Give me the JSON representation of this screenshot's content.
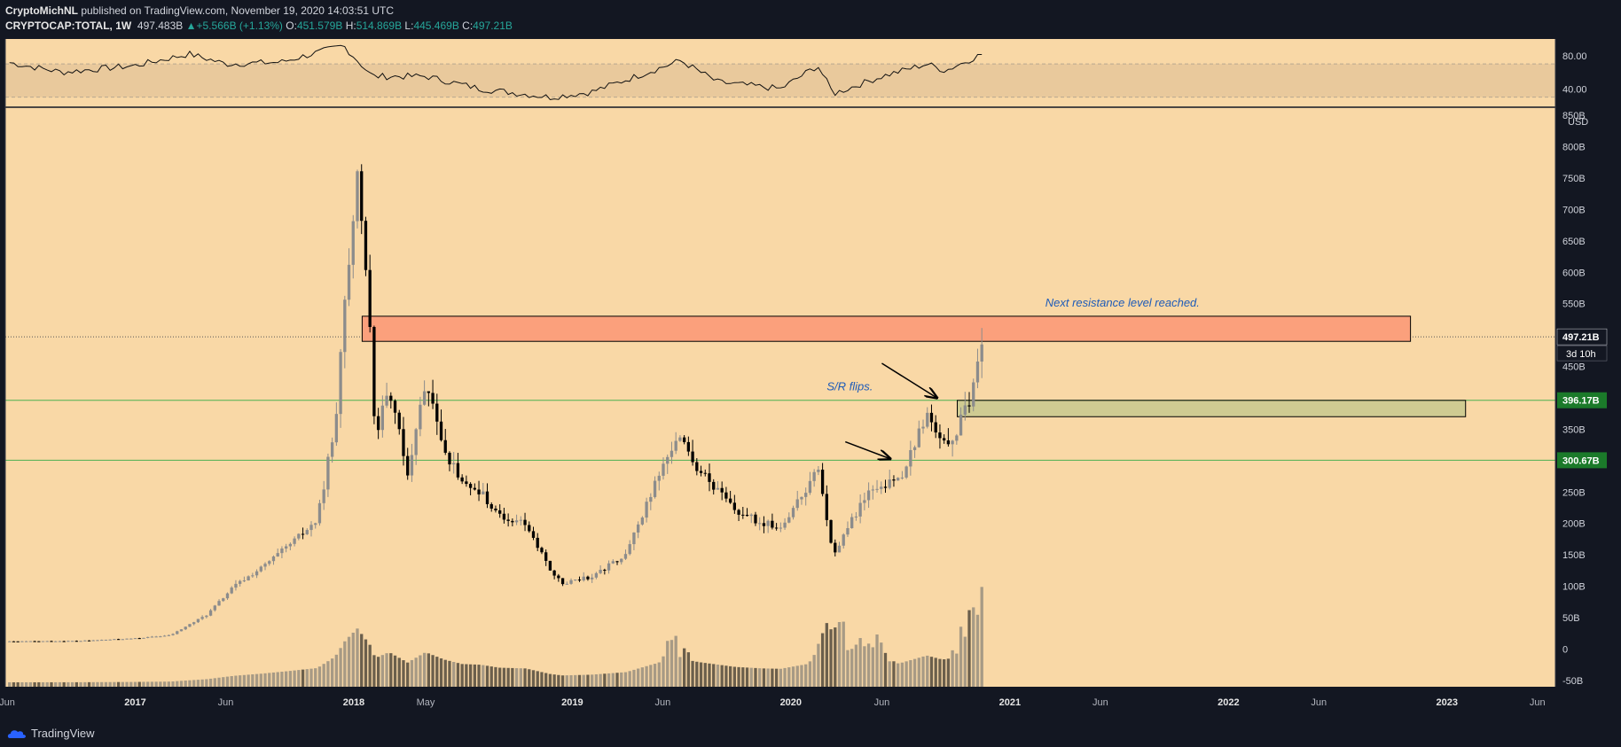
{
  "header": {
    "author": "CryptoMichNL",
    "published_text": " published on TradingView.com, November 19, 2020 14:03:51 UTC",
    "symbol": "CRYPTOCAP:TOTAL, 1W",
    "last": "497.483B",
    "change": "+5.566B (+1.13%)",
    "o_label": "O:",
    "o": "451.579B",
    "h_label": "H:",
    "h": "514.869B",
    "l_label": "L:",
    "l": "445.469B",
    "c_label": "C:",
    "c": "497.21B"
  },
  "footer": {
    "brand": "TradingView"
  },
  "colors": {
    "background": "#f9d8a6",
    "frame": "#131722",
    "up_candle": "#8c8c8c",
    "down_candle": "#000000",
    "resistance_zone": "#fba07c",
    "support_zone": "#cfcb92",
    "level_line": "#4caf50",
    "annotation": "#1e5bb8",
    "price_tag": "#131722",
    "level_tag": "#1b7a2a"
  },
  "chart_data": {
    "type": "candlestick",
    "interval": "1W",
    "currency_label": "USD",
    "y_unit": "B",
    "ylim": [
      -60,
      860
    ],
    "y_ticks": [
      "850B",
      "800B",
      "750B",
      "700B",
      "650B",
      "600B",
      "550B",
      "450B",
      "350B",
      "250B",
      "200B",
      "150B",
      "100B",
      "50B",
      "0",
      "-50B"
    ],
    "y_tick_values": [
      850,
      800,
      750,
      700,
      650,
      600,
      550,
      450,
      350,
      250,
      200,
      150,
      100,
      50,
      0,
      -50
    ],
    "x_ticks": [
      "Jun",
      "2017",
      "Jun",
      "2018",
      "May",
      "2019",
      "Jun",
      "2020",
      "Jun",
      "2021",
      "Jun",
      "2022",
      "Jun",
      "2023",
      "Jun"
    ],
    "x_tick_dates": [
      "2016-06-01",
      "2017-01-01",
      "2017-06-01",
      "2018-01-01",
      "2018-05-01",
      "2019-01-01",
      "2019-06-01",
      "2020-01-01",
      "2020-06-01",
      "2021-01-01",
      "2021-06-01",
      "2022-01-01",
      "2022-06-01",
      "2023-01-01",
      "2023-06-01"
    ],
    "x_range": [
      "2016-05-29",
      "2023-07-01"
    ],
    "current_price": {
      "value": 497.21,
      "label": "497.21B",
      "countdown": "3d 10h"
    },
    "levels": [
      {
        "value": 396.17,
        "label": "396.17B"
      },
      {
        "value": 300.67,
        "label": "300.67B"
      }
    ],
    "zones": [
      {
        "kind": "resistance",
        "from": 490,
        "to": 530,
        "start": "2018-01-15",
        "end": "2022-11-01"
      },
      {
        "kind": "support",
        "from": 370,
        "to": 396,
        "start": "2020-10-05",
        "end": "2023-02-01"
      }
    ],
    "annotations": [
      {
        "text": "Next resistance level reached.",
        "date": "2021-03-01",
        "value": 545
      },
      {
        "text": "S/R flips.",
        "date": "2020-03-01",
        "value": 412
      }
    ],
    "arrows": [
      {
        "from_date": "2020-06-01",
        "from_value": 455,
        "to_date": "2020-09-01",
        "to_value": 400
      },
      {
        "from_date": "2020-04-01",
        "from_value": 330,
        "to_date": "2020-06-15",
        "to_value": 303
      }
    ],
    "price_anchors": [
      {
        "date": "2016-06-01",
        "value": 12
      },
      {
        "date": "2016-10-01",
        "value": 13
      },
      {
        "date": "2017-01-01",
        "value": 17
      },
      {
        "date": "2017-03-01",
        "value": 22
      },
      {
        "date": "2017-05-01",
        "value": 55
      },
      {
        "date": "2017-06-15",
        "value": 100
      },
      {
        "date": "2017-08-01",
        "value": 130
      },
      {
        "date": "2017-09-15",
        "value": 165
      },
      {
        "date": "2017-11-01",
        "value": 205
      },
      {
        "date": "2017-12-01",
        "value": 360
      },
      {
        "date": "2017-12-18",
        "value": 580
      },
      {
        "date": "2018-01-07",
        "value": 740
      },
      {
        "date": "2018-01-28",
        "value": 520
      },
      {
        "date": "2018-02-06",
        "value": 340
      },
      {
        "date": "2018-03-01",
        "value": 420
      },
      {
        "date": "2018-04-01",
        "value": 280
      },
      {
        "date": "2018-05-01",
        "value": 420
      },
      {
        "date": "2018-06-01",
        "value": 320
      },
      {
        "date": "2018-07-01",
        "value": 260
      },
      {
        "date": "2018-08-01",
        "value": 250
      },
      {
        "date": "2018-09-01",
        "value": 210
      },
      {
        "date": "2018-10-15",
        "value": 200
      },
      {
        "date": "2018-11-25",
        "value": 125
      },
      {
        "date": "2018-12-15",
        "value": 105
      },
      {
        "date": "2019-02-01",
        "value": 115
      },
      {
        "date": "2019-04-01",
        "value": 150
      },
      {
        "date": "2019-05-15",
        "value": 255
      },
      {
        "date": "2019-06-25",
        "value": 340
      },
      {
        "date": "2019-08-01",
        "value": 285
      },
      {
        "date": "2019-10-01",
        "value": 220
      },
      {
        "date": "2019-11-15",
        "value": 200
      },
      {
        "date": "2019-12-15",
        "value": 195
      },
      {
        "date": "2020-02-15",
        "value": 285
      },
      {
        "date": "2020-03-12",
        "value": 145
      },
      {
        "date": "2020-04-01",
        "value": 190
      },
      {
        "date": "2020-05-15",
        "value": 255
      },
      {
        "date": "2020-07-01",
        "value": 270
      },
      {
        "date": "2020-08-15",
        "value": 375
      },
      {
        "date": "2020-09-10",
        "value": 320
      },
      {
        "date": "2020-10-01",
        "value": 345
      },
      {
        "date": "2020-10-25",
        "value": 390
      },
      {
        "date": "2020-11-08",
        "value": 445
      },
      {
        "date": "2020-11-16",
        "value": 497
      }
    ],
    "volume_spikes": [
      {
        "date": "2018-01-01",
        "relative": 0.28
      },
      {
        "date": "2019-06-20",
        "relative": 0.62
      },
      {
        "date": "2020-03-12",
        "relative": 1.0
      },
      {
        "date": "2020-05-10",
        "relative": 0.78
      },
      {
        "date": "2020-11-16",
        "relative": 1.45
      }
    ],
    "rsi": {
      "y_ticks": [
        "80.00",
        "40.00"
      ],
      "y_tick_values": [
        80,
        40
      ],
      "band": [
        30,
        70
      ],
      "anchors": [
        {
          "date": "2016-06-01",
          "value": 72
        },
        {
          "date": "2016-09-01",
          "value": 60
        },
        {
          "date": "2017-01-01",
          "value": 68
        },
        {
          "date": "2017-04-01",
          "value": 82
        },
        {
          "date": "2017-06-01",
          "value": 70
        },
        {
          "date": "2017-09-01",
          "value": 72
        },
        {
          "date": "2017-12-15",
          "value": 92
        },
        {
          "date": "2018-02-01",
          "value": 55
        },
        {
          "date": "2018-05-01",
          "value": 55
        },
        {
          "date": "2018-08-01",
          "value": 40
        },
        {
          "date": "2018-11-25",
          "value": 30
        },
        {
          "date": "2019-02-01",
          "value": 36
        },
        {
          "date": "2019-05-15",
          "value": 62
        },
        {
          "date": "2019-07-01",
          "value": 74
        },
        {
          "date": "2019-09-01",
          "value": 48
        },
        {
          "date": "2019-12-15",
          "value": 40
        },
        {
          "date": "2020-02-15",
          "value": 68
        },
        {
          "date": "2020-03-12",
          "value": 34
        },
        {
          "date": "2020-06-01",
          "value": 55
        },
        {
          "date": "2020-08-15",
          "value": 70
        },
        {
          "date": "2020-09-15",
          "value": 62
        },
        {
          "date": "2020-11-16",
          "value": 82
        }
      ]
    }
  }
}
